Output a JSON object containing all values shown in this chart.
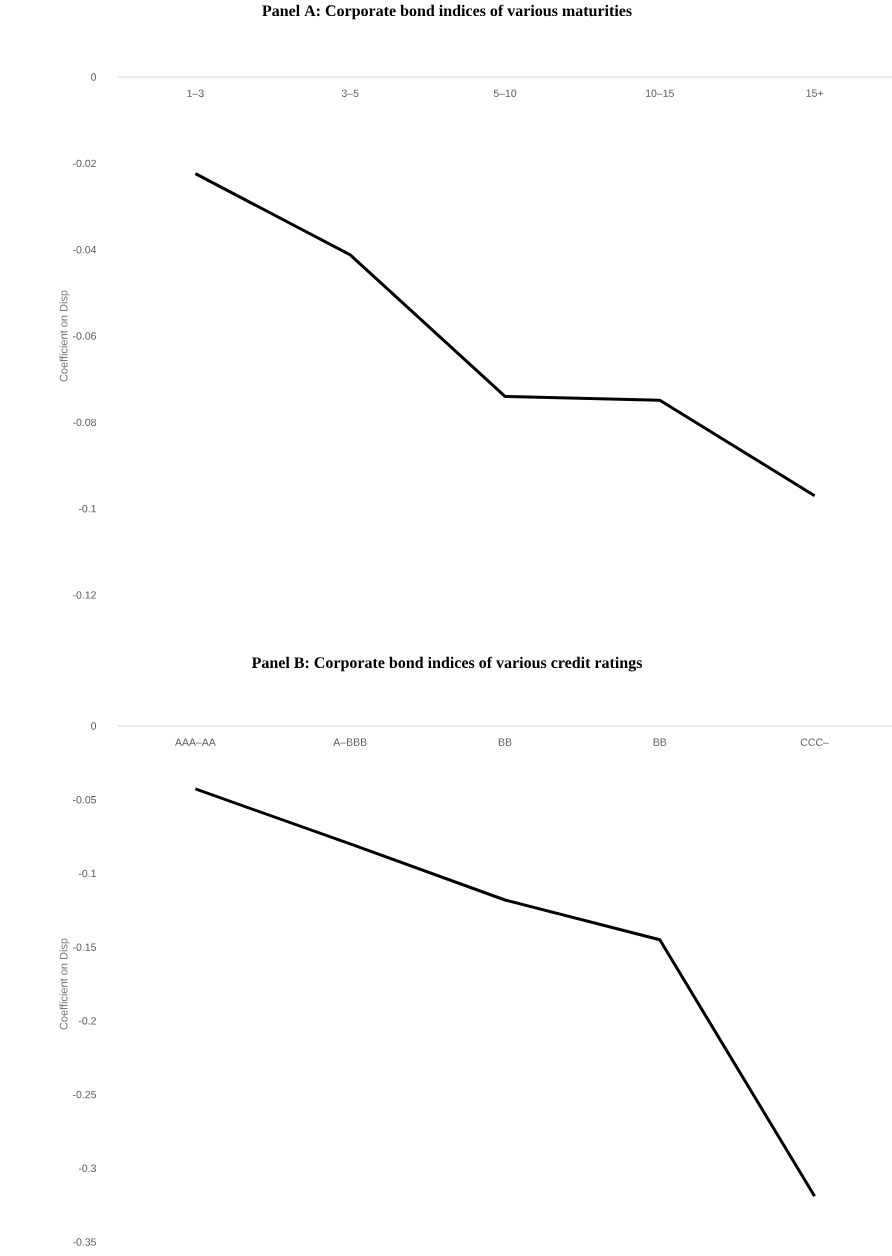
{
  "chart_data": [
    {
      "type": "line",
      "title": "Panel A: Corporate bond indices of various maturities",
      "ylabel": "Coefficient on Disp",
      "categories": [
        "1–3",
        "3–5",
        "5–10",
        "10–15",
        "15+"
      ],
      "series": [
        {
          "color": "#000000",
          "values": [
            -0.0224,
            -0.0412,
            -0.074,
            -0.0749,
            -0.097
          ]
        }
      ],
      "ylim": [
        -0.12,
        0
      ],
      "yticks": [
        -0.12,
        -0.1,
        -0.08,
        -0.06,
        -0.04,
        -0.02,
        0
      ]
    },
    {
      "type": "line",
      "title": "Panel B: Corporate bond indices of various credit ratings",
      "ylabel": "Coefficient on Disp",
      "categories": [
        "AAA–AA",
        "A–BBB",
        "BB",
        "BB",
        "CCC–"
      ],
      "series": [
        {
          "color": "#000000",
          "values": [
            -0.0427,
            -0.08,
            -0.118,
            -0.145,
            -0.319
          ]
        }
      ],
      "ylim": [
        -0.35,
        0
      ],
      "yticks": [
        -0.35,
        -0.3,
        -0.25,
        -0.2,
        -0.15,
        -0.1,
        -0.05,
        0
      ]
    }
  ]
}
